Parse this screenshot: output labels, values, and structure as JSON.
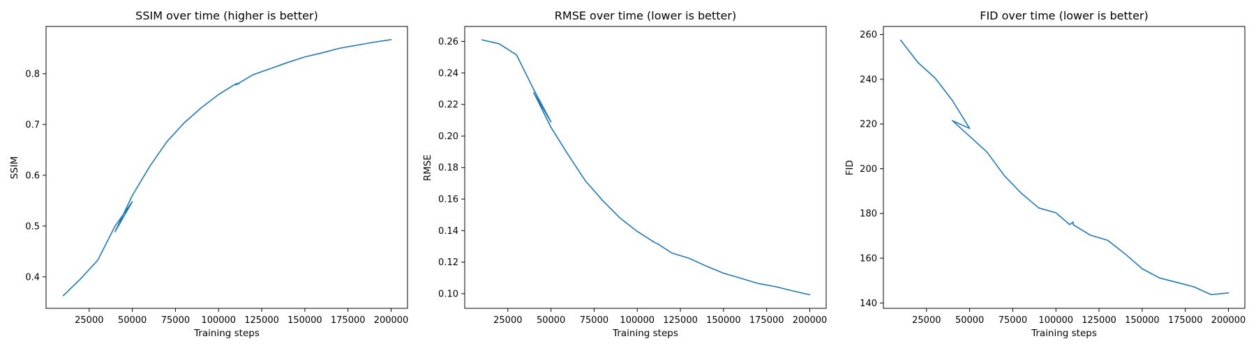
{
  "figure": {
    "background": "#ffffff",
    "line_color": "#1f77b4"
  },
  "chart_data": [
    {
      "type": "line",
      "title": "SSIM over time (higher is better)",
      "xlabel": "Training steps",
      "ylabel": "SSIM",
      "xlim": [
        0,
        209500
      ],
      "ylim": [
        0.338,
        0.893
      ],
      "xticks": [
        25000,
        50000,
        75000,
        100000,
        125000,
        150000,
        175000,
        200000
      ],
      "yticks": [
        0.4,
        0.5,
        0.6,
        0.7,
        0.8
      ],
      "ytick_labels": [
        "0.4",
        "0.5",
        "0.6",
        "0.7",
        "0.8"
      ],
      "grid": false,
      "series": [
        {
          "x": [
            10000,
            20000,
            30000,
            40000,
            50000,
            40000,
            50000,
            60000,
            70000,
            80000,
            90000,
            100000,
            110000,
            112000,
            110000,
            120000,
            130000,
            140000,
            150000,
            160000,
            170000,
            180000,
            190000,
            200000
          ],
          "y": [
            0.363,
            0.396,
            0.433,
            0.5,
            0.548,
            0.489,
            0.56,
            0.617,
            0.666,
            0.703,
            0.733,
            0.759,
            0.78,
            0.781,
            0.778,
            0.798,
            0.81,
            0.822,
            0.833,
            0.841,
            0.85,
            0.856,
            0.862,
            0.867
          ]
        }
      ]
    },
    {
      "type": "line",
      "title": "RMSE over time (lower is better)",
      "xlabel": "Training steps",
      "ylabel": "RMSE",
      "xlim": [
        0,
        209500
      ],
      "ylim": [
        0.0907,
        0.2695
      ],
      "xticks": [
        25000,
        50000,
        75000,
        100000,
        125000,
        150000,
        175000,
        200000
      ],
      "yticks": [
        0.1,
        0.12,
        0.14,
        0.16,
        0.18,
        0.2,
        0.22,
        0.24,
        0.26
      ],
      "ytick_labels": [
        "0.10",
        "0.12",
        "0.14",
        "0.16",
        "0.18",
        "0.20",
        "0.22",
        "0.24",
        "0.26"
      ],
      "grid": false,
      "series": [
        {
          "x": [
            10000,
            20000,
            30000,
            40000,
            50000,
            40000,
            50000,
            60000,
            70000,
            80000,
            90000,
            100000,
            110000,
            112000,
            120000,
            130000,
            140000,
            150000,
            160000,
            170000,
            180000,
            190000,
            200000
          ],
          "y": [
            0.261,
            0.2585,
            0.2515,
            0.2295,
            0.209,
            0.2275,
            0.2055,
            0.188,
            0.1715,
            0.159,
            0.148,
            0.1395,
            0.1325,
            0.1315,
            0.1258,
            0.1225,
            0.1175,
            0.113,
            0.1098,
            0.1065,
            0.1045,
            0.1018,
            0.0993
          ]
        }
      ]
    },
    {
      "type": "line",
      "title": "FID over time (lower is better)",
      "xlabel": "Training steps",
      "ylabel": "FID",
      "xlim": [
        0,
        209500
      ],
      "ylim": [
        137.6,
        263.6
      ],
      "xticks": [
        25000,
        50000,
        75000,
        100000,
        125000,
        150000,
        175000,
        200000
      ],
      "yticks": [
        140,
        160,
        180,
        200,
        220,
        240,
        260
      ],
      "ytick_labels": [
        "140",
        "160",
        "180",
        "200",
        "220",
        "240",
        "260"
      ],
      "grid": false,
      "series": [
        {
          "x": [
            10000,
            20000,
            30000,
            40000,
            50000,
            40000,
            50000,
            60000,
            70000,
            80000,
            90000,
            100000,
            108000,
            110000,
            110000,
            120000,
            130000,
            140000,
            150000,
            160000,
            170000,
            180000,
            190000,
            200000
          ],
          "y": [
            257.5,
            247.5,
            240.5,
            230.5,
            218.0,
            221.5,
            214.5,
            207.5,
            197.0,
            189.0,
            182.5,
            180.3,
            175.0,
            176.2,
            175.0,
            170.3,
            168.0,
            162.0,
            155.3,
            151.2,
            149.2,
            147.2,
            143.7,
            144.5
          ]
        }
      ]
    }
  ]
}
